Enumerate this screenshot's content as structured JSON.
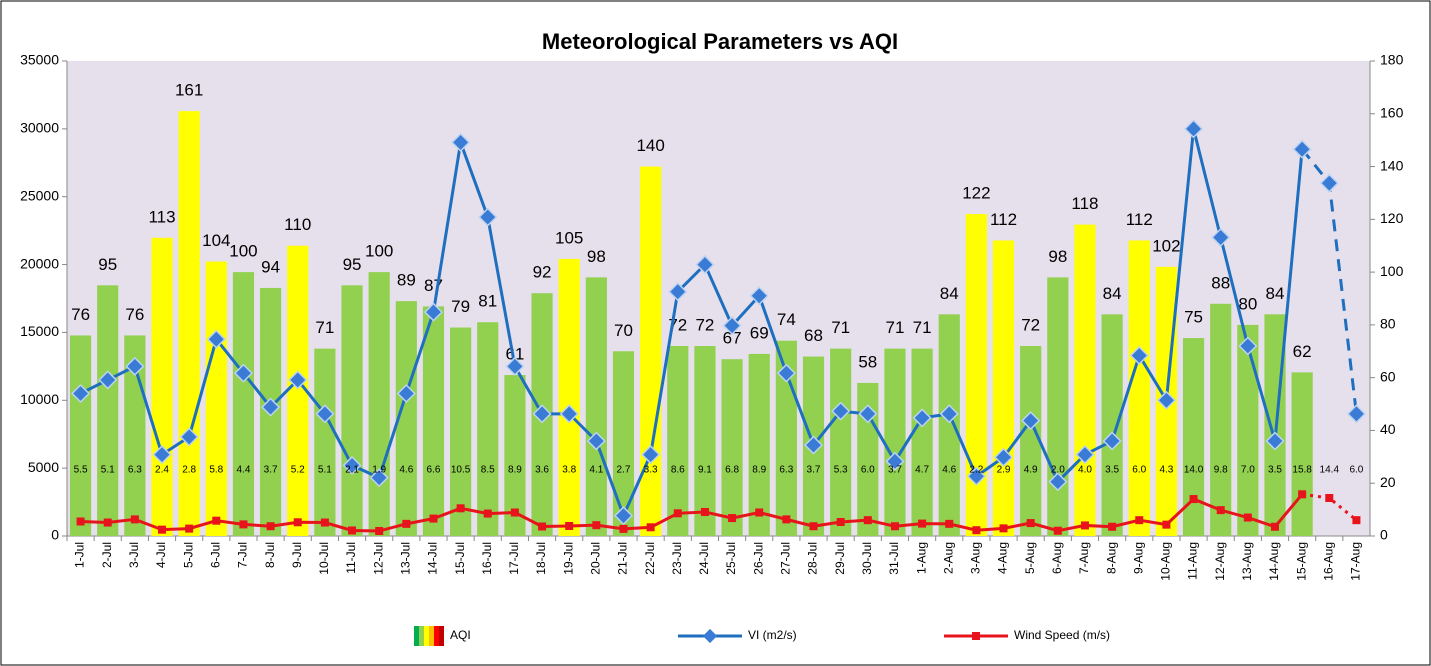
{
  "chart_data": {
    "type": "combo",
    "title": "Meteorological Parameters vs AQI",
    "categories": [
      "1-Jul",
      "2-Jul",
      "3-Jul",
      "4-Jul",
      "5-Jul",
      "6-Jul",
      "7-Jul",
      "8-Jul",
      "9-Jul",
      "10-Jul",
      "11-Jul",
      "12-Jul",
      "13-Jul",
      "14-Jul",
      "15-Jul",
      "16-Jul",
      "17-Jul",
      "18-Jul",
      "19-Jul",
      "20-Jul",
      "21-Jul",
      "22-Jul",
      "23-Jul",
      "24-Jul",
      "25-Jul",
      "26-Jul",
      "27-Jul",
      "28-Jul",
      "29-Jul",
      "30-Jul",
      "31-Jul",
      "1-Aug",
      "2-Aug",
      "3-Aug",
      "4-Aug",
      "5-Aug",
      "6-Aug",
      "7-Aug",
      "8-Aug",
      "9-Aug",
      "10-Aug",
      "11-Aug",
      "12-Aug",
      "13-Aug",
      "14-Aug",
      "15-Aug",
      "16-Aug",
      "17-Aug"
    ],
    "series": [
      {
        "name": "AQI",
        "type": "bar",
        "axis": "y2",
        "values": [
          76,
          95,
          76,
          113,
          161,
          104,
          100,
          94,
          110,
          71,
          95,
          100,
          89,
          87,
          79,
          81,
          61,
          92,
          105,
          98,
          70,
          140,
          72,
          72,
          67,
          69,
          74,
          68,
          71,
          58,
          71,
          71,
          84,
          122,
          112,
          72,
          98,
          118,
          84,
          112,
          102,
          75,
          88,
          80,
          84,
          62,
          null,
          null
        ],
        "colors": [
          "#92d050",
          "#92d050",
          "#92d050",
          "#ffff00",
          "#ffff00",
          "#ffff00",
          "#92d050",
          "#92d050",
          "#ffff00",
          "#92d050",
          "#92d050",
          "#92d050",
          "#92d050",
          "#92d050",
          "#92d050",
          "#92d050",
          "#92d050",
          "#92d050",
          "#ffff00",
          "#92d050",
          "#92d050",
          "#ffff00",
          "#92d050",
          "#92d050",
          "#92d050",
          "#92d050",
          "#92d050",
          "#92d050",
          "#92d050",
          "#92d050",
          "#92d050",
          "#92d050",
          "#92d050",
          "#ffff00",
          "#ffff00",
          "#92d050",
          "#92d050",
          "#ffff00",
          "#92d050",
          "#ffff00",
          "#ffff00",
          "#92d050",
          "#92d050",
          "#92d050",
          "#92d050",
          "#92d050",
          "#92d050",
          "#92d050"
        ],
        "legend_colors": [
          "#00b050",
          "#92d050",
          "#ffff00",
          "#ffc000",
          "#ff0000",
          "#c00000"
        ]
      },
      {
        "name": "VI (m2/s)",
        "type": "line",
        "color": "#1f6fc0",
        "values": [
          10500,
          11500,
          12500,
          6000,
          7300,
          14500,
          12000,
          9500,
          11500,
          9000,
          5200,
          4300,
          10500,
          16500,
          29000,
          23500,
          12500,
          9000,
          9000,
          7000,
          1500,
          6000,
          18000,
          20000,
          15500,
          17700,
          12000,
          6700,
          9200,
          9000,
          5500,
          8700,
          9000,
          4400,
          5800,
          8500,
          4000,
          6000,
          7000,
          13300,
          10000,
          30000,
          22000,
          14000,
          7000,
          28500,
          26000,
          9000
        ]
      },
      {
        "name": "Wind Speed (m/s)",
        "type": "line",
        "axis": "y2",
        "color": "#e8141b",
        "values": [
          5.5,
          5.1,
          6.3,
          2.4,
          2.8,
          5.8,
          4.4,
          3.7,
          5.2,
          5.1,
          2.1,
          1.9,
          4.6,
          6.6,
          10.5,
          8.5,
          8.9,
          3.6,
          3.8,
          4.1,
          2.7,
          3.3,
          8.6,
          9.1,
          6.8,
          8.9,
          6.3,
          3.7,
          5.3,
          6.0,
          3.7,
          4.7,
          4.6,
          2.2,
          2.9,
          4.9,
          2.0,
          4.0,
          3.5,
          6.0,
          4.3,
          14.0,
          9.8,
          7.0,
          3.5,
          15.8,
          14.4,
          6.0
        ],
        "value_labels": [
          "5.5",
          "5.1",
          "6.3",
          "2.4",
          "2.8",
          "5.8",
          "4.4",
          "3.7",
          "5.2",
          "5.1",
          "2.1",
          "1.9",
          "4.6",
          "6.6",
          "10.5",
          "8.5",
          "8.9",
          "3.6",
          "3.8",
          "4.1",
          "2.7",
          "3.3",
          "8.6",
          "9.1",
          "6.8",
          "8.9",
          "6.3",
          "3.7",
          "5.3",
          "6.0",
          "3.7",
          "4.7",
          "4.6",
          "2.2",
          "2.9",
          "4.9",
          "2.0",
          "4.0",
          "3.5",
          "6.0",
          "4.3",
          "14.0",
          "9.8",
          "7.0",
          "3.5",
          "15.8",
          "14.4",
          "6.0"
        ]
      }
    ],
    "dashed_from": 45,
    "ylim": [
      0,
      35000
    ],
    "yticks": [
      0,
      5000,
      10000,
      15000,
      20000,
      25000,
      30000,
      35000
    ],
    "y2lim": [
      0,
      180
    ],
    "y2ticks": [
      0,
      20,
      40,
      60,
      80,
      100,
      120,
      140,
      160,
      180
    ],
    "plot_background": "#e6e0ec"
  }
}
